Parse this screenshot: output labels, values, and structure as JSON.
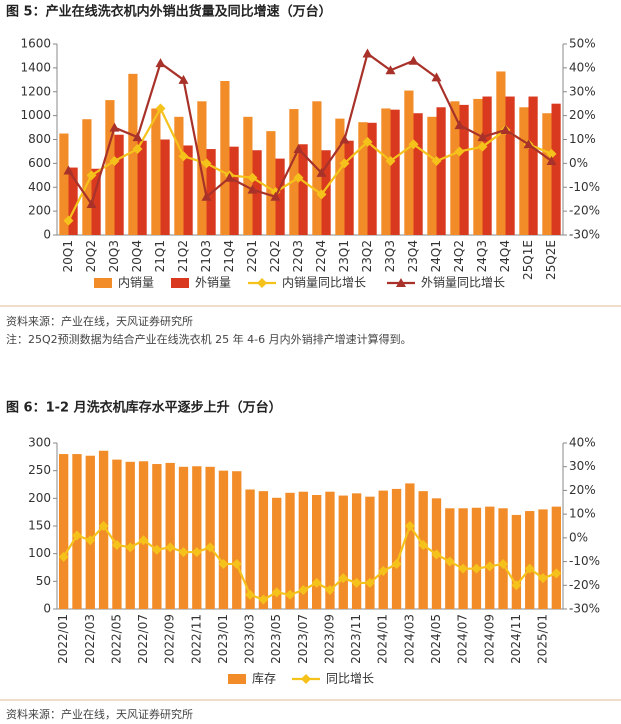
{
  "chart_data": [
    {
      "type": "combo",
      "title": "图 5：产业在线洗衣机内外销出货量及同比增速（万台）",
      "source": "资料来源：产业在线，天风证券研究所",
      "note": "注：25Q2预测数据为结合产业在线洗衣机 25 年 4-6 月内外销排产增速计算得到。",
      "categories": [
        "20Q1",
        "20Q2",
        "20Q3",
        "20Q4",
        "21Q1",
        "21Q2",
        "21Q3",
        "21Q4",
        "22Q1",
        "22Q2",
        "22Q3",
        "22Q4",
        "23Q1",
        "23Q2",
        "23Q3",
        "23Q4",
        "24Q1",
        "24Q2",
        "24Q3",
        "24Q4",
        "25Q1E",
        "25Q2E"
      ],
      "series": [
        {
          "name": "内销量",
          "type": "bar",
          "color": "#f28c28",
          "values": [
            850,
            970,
            1130,
            1350,
            1060,
            990,
            1120,
            1290,
            990,
            870,
            1055,
            1120,
            975,
            945,
            1060,
            1210,
            990,
            1120,
            1140,
            1370,
            1070,
            1020
          ]
        },
        {
          "name": "外销量",
          "type": "bar",
          "color": "#d93a1f",
          "values": [
            565,
            555,
            840,
            790,
            800,
            750,
            720,
            740,
            710,
            640,
            760,
            710,
            790,
            940,
            1050,
            1020,
            1070,
            1090,
            1160,
            1160,
            1160,
            1100
          ]
        },
        {
          "name": "内销量同比增长",
          "type": "line",
          "axis": "y2",
          "marker": "diamond",
          "color": "#f5c21b",
          "values": [
            -24,
            -5,
            1,
            6,
            23,
            3,
            0,
            -5,
            -6,
            -12,
            -6,
            -13,
            0,
            9,
            1,
            8,
            1,
            5,
            7,
            14,
            8,
            4
          ]
        },
        {
          "name": "外销量同比增长",
          "type": "line",
          "axis": "y2",
          "marker": "triangle",
          "color": "#a8322a",
          "values": [
            -3,
            -17,
            15,
            11,
            42,
            35,
            -14,
            -6,
            -11,
            -14,
            6,
            -4,
            10,
            46,
            39,
            43,
            36,
            16,
            11,
            14,
            8,
            1
          ]
        }
      ],
      "ylim": [
        0,
        1600
      ],
      "yticks": [
        0,
        200,
        400,
        600,
        800,
        1000,
        1200,
        1400,
        1600
      ],
      "y2lim": [
        -30,
        50
      ],
      "y2ticks": [
        {
          "value": -30,
          "label": "-30%"
        },
        {
          "value": -20,
          "label": "-20%"
        },
        {
          "value": -10,
          "label": "-10%"
        },
        {
          "value": 0,
          "label": "0%"
        },
        {
          "value": 10,
          "label": "10%"
        },
        {
          "value": 20,
          "label": "20%"
        },
        {
          "value": 30,
          "label": "30%"
        },
        {
          "value": 40,
          "label": "40%"
        },
        {
          "value": 50,
          "label": "50%"
        }
      ],
      "grid": false
    },
    {
      "type": "combo",
      "title": "图 6：1-2 月洗衣机库存水平逐步上升（万台）",
      "source": "资料来源：产业在线，天风证券研究所",
      "categories": [
        "2022/01",
        null,
        "2022/03",
        null,
        "2022/05",
        null,
        "2022/07",
        null,
        "2022/09",
        null,
        "2022/11",
        null,
        "2023/01",
        null,
        "2023/03",
        null,
        "2023/05",
        null,
        "2023/07",
        null,
        "2023/09",
        null,
        "2023/11",
        null,
        "2024/01",
        null,
        "2024/03",
        null,
        "2024/05",
        null,
        "2024/07",
        null,
        "2024/09",
        null,
        "2024/11",
        null,
        "2025/01",
        null
      ],
      "series": [
        {
          "name": "库存",
          "type": "bar",
          "color": "#f28c28",
          "values": [
            280,
            280,
            277,
            286,
            270,
            266,
            267,
            262,
            264,
            257,
            258,
            257,
            250,
            249,
            216,
            213,
            201,
            210,
            212,
            206,
            212,
            205,
            209,
            203,
            214,
            217,
            227,
            213,
            200,
            182,
            182,
            183,
            185,
            182,
            170,
            177,
            180,
            185
          ]
        },
        {
          "name": "同比增长",
          "type": "line",
          "axis": "y2",
          "marker": "diamond",
          "color": "#f5c21b",
          "values": [
            -8,
            1,
            -1,
            5,
            -3,
            -4,
            -1,
            -5,
            -4,
            -6,
            -6,
            -4,
            -11,
            -11,
            -24,
            -26,
            -23,
            -24,
            -22,
            -19,
            -22,
            -17,
            -19,
            -19,
            -14,
            -11,
            5,
            -3,
            -7,
            -10,
            -13,
            -13,
            -12,
            -11,
            -20,
            -13,
            -17,
            -15
          ]
        }
      ],
      "ylim": [
        0,
        300
      ],
      "yticks": [
        0,
        50,
        100,
        150,
        200,
        250,
        300
      ],
      "y2lim": [
        -30,
        40
      ],
      "y2ticks": [
        {
          "value": -30,
          "label": "-30%"
        },
        {
          "value": -20,
          "label": "-20%"
        },
        {
          "value": -10,
          "label": "-10%"
        },
        {
          "value": 0,
          "label": "0%"
        },
        {
          "value": 10,
          "label": "10%"
        },
        {
          "value": 20,
          "label": "20%"
        },
        {
          "value": 30,
          "label": "30%"
        },
        {
          "value": 40,
          "label": "40%"
        }
      ],
      "grid": false
    }
  ]
}
